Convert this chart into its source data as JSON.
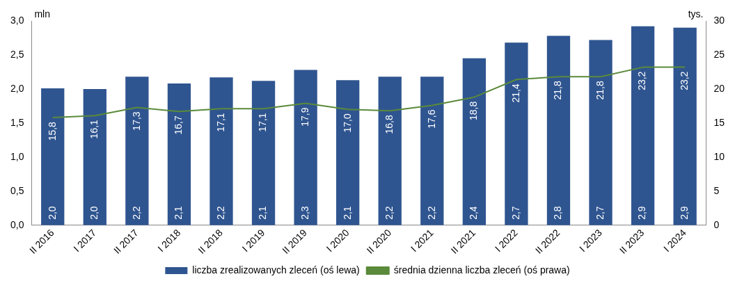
{
  "chart_data": {
    "type": "bar",
    "ylabel": "mln",
    "y2label": "tys.",
    "categories": [
      "II 2016",
      "I 2017",
      "II 2017",
      "I 2018",
      "II 2018",
      "I 2019",
      "II 2019",
      "I 2020",
      "II 2020",
      "I 2021",
      "II 2021",
      "I 2022",
      "II 2022",
      "I 2023",
      "II 2023",
      "I 2024"
    ],
    "series": [
      {
        "name": "liczba zrealizowanych zleceń (oś lewa)",
        "color": "#2f5590",
        "values": [
          2.01,
          2.0,
          2.18,
          2.08,
          2.17,
          2.12,
          2.28,
          2.13,
          2.18,
          2.18,
          2.45,
          2.68,
          2.78,
          2.72,
          2.92,
          2.9
        ],
        "value_labels": [
          "2,0",
          "2,0",
          "2,2",
          "2,1",
          "2,2",
          "2,1",
          "2,3",
          "2,1",
          "2,2",
          "2,2",
          "2,4",
          "2,7",
          "2,8",
          "2,7",
          "2,9",
          "2,9"
        ]
      },
      {
        "name": "średnia dzienna liczba zleceń (oś prawa)",
        "type": "line",
        "axis": "y2",
        "color": "#5a8a3a",
        "values": [
          15.8,
          16.1,
          17.3,
          16.7,
          17.1,
          17.1,
          17.9,
          17.0,
          16.8,
          17.6,
          18.8,
          21.4,
          21.8,
          21.8,
          23.2,
          23.2
        ],
        "value_labels": [
          "15,8",
          "16,1",
          "17,3",
          "16,7",
          "17,1",
          "17,1",
          "17,9",
          "17,0",
          "16,8",
          "17,6",
          "18,8",
          "21,4",
          "21,8",
          "21,8",
          "23,2",
          "23,2"
        ]
      }
    ],
    "ylim": [
      0,
      3
    ],
    "yticks": [
      {
        "value": 0,
        "label": "0,0"
      },
      {
        "value": 0.5,
        "label": "0,5"
      },
      {
        "value": 1,
        "label": "1,0"
      },
      {
        "value": 1.5,
        "label": "1,5"
      },
      {
        "value": 2,
        "label": "2,0"
      },
      {
        "value": 2.5,
        "label": "2,5"
      },
      {
        "value": 3,
        "label": "3,0"
      }
    ],
    "y2lim": [
      0,
      30
    ],
    "y2ticks": [
      0,
      5,
      10,
      15,
      20,
      25,
      30
    ],
    "grid": false,
    "legend": "bottom",
    "marker": "none",
    "line_style": "solid"
  }
}
